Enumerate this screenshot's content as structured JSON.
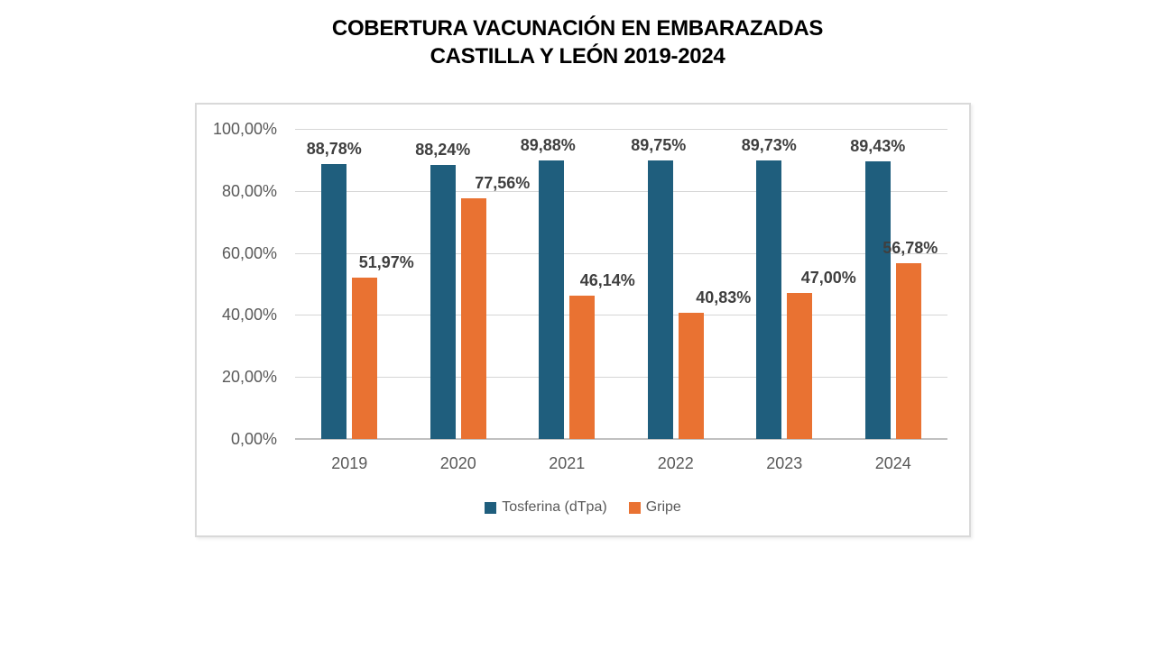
{
  "title": {
    "line1": "COBERTURA VACUNACIÓN EN EMBARAZADAS",
    "line2": "CASTILLA Y LEÓN 2019-2024"
  },
  "chart_data": {
    "type": "bar",
    "title": "COBERTURA VACUNACIÓN EN EMBARAZADAS CASTILLA Y LEÓN 2019-2024",
    "categories": [
      "2019",
      "2020",
      "2021",
      "2022",
      "2023",
      "2024"
    ],
    "series": [
      {
        "name": "Tosferina (dTpa)",
        "slug": "tosferina-dtpa",
        "color": "#1F5E7D",
        "values": [
          88.78,
          88.24,
          89.88,
          89.75,
          89.73,
          89.43
        ],
        "labels": [
          "88,78%",
          "88,24%",
          "89,88%",
          "89,75%",
          "89,73%",
          "89,43%"
        ],
        "label_dx": [
          0,
          0,
          -4,
          -2,
          0,
          0
        ]
      },
      {
        "name": "Gripe",
        "slug": "gripe",
        "color": "#E97232",
        "values": [
          51.97,
          77.56,
          46.14,
          40.83,
          47.0,
          56.78
        ],
        "labels": [
          "51,97%",
          "77,56%",
          "46,14%",
          "40,83%",
          "47,00%",
          "56,78%"
        ],
        "label_dx": [
          24,
          32,
          28,
          36,
          32,
          2
        ]
      }
    ],
    "y_axis": {
      "min": 0,
      "max": 100,
      "ticks": [
        {
          "value": 100,
          "label": "100,00%"
        },
        {
          "value": 80,
          "label": "80,00%"
        },
        {
          "value": 60,
          "label": "60,00%"
        },
        {
          "value": 40,
          "label": "40,00%"
        },
        {
          "value": 20,
          "label": "20,00%"
        },
        {
          "value": 0,
          "label": "0,00%"
        }
      ]
    },
    "grid": true,
    "legend_position": "bottom"
  },
  "colors": {
    "tosferina": "#1F5E7D",
    "gripe": "#E97232",
    "gridline": "#D6D6D6",
    "axis_line": "#C0C0C0",
    "tick_text": "#595959",
    "data_label_text": "#3F3F3F",
    "frame_border": "#D9D9D9",
    "title_text": "#000000"
  }
}
